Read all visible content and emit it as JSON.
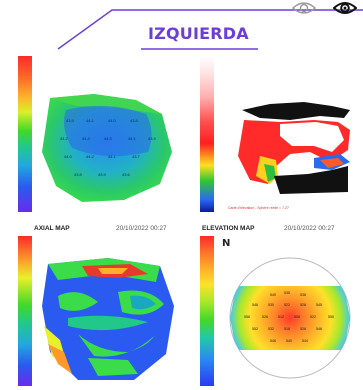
{
  "header": {
    "title": "IZQUIERDA",
    "accent": "#6b3fd6"
  },
  "icons": {
    "eye_open": "eye-icon",
    "eye_selected": "eye-selected-icon"
  },
  "maps": [
    {
      "label": "AXIAL MAP",
      "timestamp": "20/10/2022 00:27"
    },
    {
      "label": "ELEVATION MAP",
      "timestamp": "20/10/2022 00:27"
    }
  ],
  "elevation_note": "Carte d'élévation - Sphère réelle = 7.27",
  "north_marker": "N"
}
